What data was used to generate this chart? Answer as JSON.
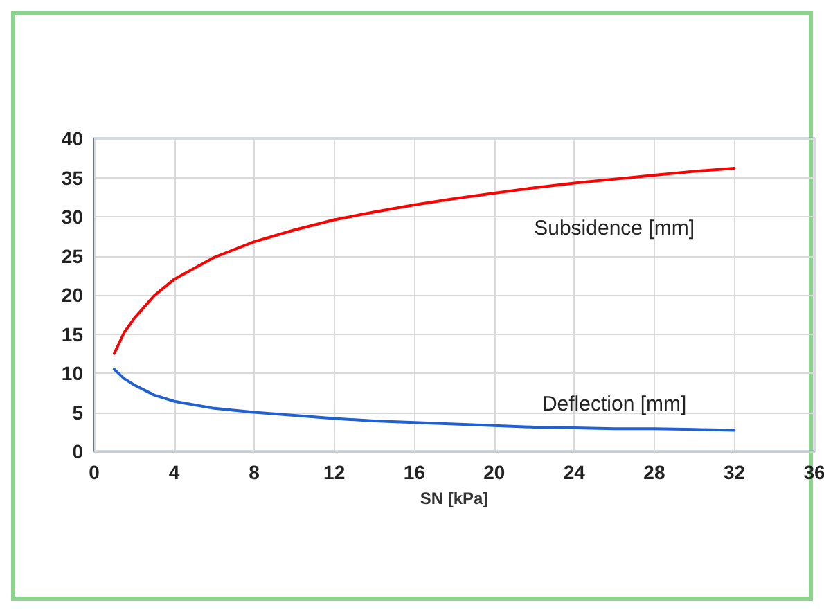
{
  "chart_data": {
    "type": "line",
    "xlabel": "SN [kPa]",
    "xlim": [
      0,
      36
    ],
    "xticks": [
      0,
      4,
      8,
      12,
      16,
      20,
      24,
      28,
      32,
      36
    ],
    "ylim": [
      0,
      40
    ],
    "yticks": [
      0,
      5,
      10,
      15,
      20,
      25,
      30,
      35,
      40
    ],
    "grid": true,
    "legend": false,
    "marker": "none",
    "line_style": "solid",
    "series": [
      {
        "name": "Subsidence [mm]",
        "color": "#ff0000",
        "x": [
          1,
          1.5,
          2,
          3,
          4,
          6,
          8,
          10,
          12,
          14,
          16,
          18,
          20,
          22,
          24,
          26,
          28,
          30,
          32
        ],
        "values": [
          12.5,
          15.2,
          17,
          19.9,
          22,
          24.8,
          26.8,
          28.3,
          29.6,
          30.6,
          31.5,
          32.3,
          33,
          33.7,
          34.3,
          34.8,
          35.3,
          35.8,
          36.2
        ]
      },
      {
        "name": "Deflection [mm]",
        "color": "#2060d0",
        "x": [
          1,
          1.5,
          2,
          3,
          4,
          6,
          8,
          10,
          12,
          14,
          16,
          18,
          20,
          22,
          24,
          26,
          28,
          30,
          32
        ],
        "values": [
          10.5,
          9.3,
          8.5,
          7.2,
          6.4,
          5.5,
          5,
          4.6,
          4.2,
          3.9,
          3.7,
          3.5,
          3.3,
          3.1,
          3,
          2.9,
          2.9,
          2.8,
          2.7
        ]
      }
    ]
  }
}
